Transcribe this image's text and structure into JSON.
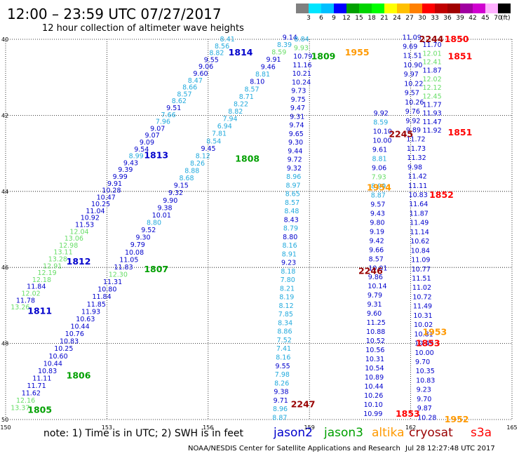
{
  "title": "12:00 – 23:59 UTC 07/27/2017",
  "subtitle": "12 hour collection of altimeter wave heights",
  "colorbar": {
    "unit": "(ft)",
    "segments": [
      {
        "label": "3",
        "color": "#808080"
      },
      {
        "label": "6",
        "color": "#00e5ff"
      },
      {
        "label": "9",
        "color": "#00bfff"
      },
      {
        "label": "12",
        "color": "#0000ff"
      },
      {
        "label": "15",
        "color": "#00a000"
      },
      {
        "label": "18",
        "color": "#00d400"
      },
      {
        "label": "21",
        "color": "#00ff00"
      },
      {
        "label": "24",
        "color": "#ffff00"
      },
      {
        "label": "27",
        "color": "#ffc000"
      },
      {
        "label": "30",
        "color": "#ff8000"
      },
      {
        "label": "33",
        "color": "#ff0000"
      },
      {
        "label": "36",
        "color": "#c00000"
      },
      {
        "label": "39",
        "color": "#a00000"
      },
      {
        "label": "42",
        "color": "#a000a0"
      },
      {
        "label": "45",
        "color": "#d000d0"
      },
      {
        "label": "70",
        "color": "#ffb0ff"
      },
      {
        "label": "",
        "color": "#000000"
      }
    ]
  },
  "map": {
    "lon_ticks": [
      "150",
      "153",
      "156",
      "159",
      "162",
      "165"
    ],
    "lat_ticks": [
      "40",
      "42",
      "44",
      "46",
      "48",
      "50"
    ],
    "lon_range": [
      150,
      165
    ],
    "lat_range": [
      40,
      50
    ]
  },
  "colors": {
    "jason2": "#0000cc",
    "jason3": "#00a000",
    "altika": "#ff9900",
    "cryosat": "#990000",
    "s3a": "#ff0000",
    "light_blue": "#22aadd",
    "light_green": "#66dd66"
  },
  "time_labels": [
    {
      "text": "1814",
      "sat": "jason2",
      "lon": 156.6,
      "lat": 40.35
    },
    {
      "text": "1813",
      "sat": "jason2",
      "lon": 154.1,
      "lat": 43.05
    },
    {
      "text": "1812",
      "sat": "jason2",
      "lon": 151.8,
      "lat": 45.85
    },
    {
      "text": "1811",
      "sat": "jason2",
      "lon": 150.65,
      "lat": 47.15
    },
    {
      "text": "1808",
      "sat": "jason3",
      "lon": 156.8,
      "lat": 43.15
    },
    {
      "text": "1807",
      "sat": "jason3",
      "lon": 154.1,
      "lat": 46.05
    },
    {
      "text": "1806",
      "sat": "jason3",
      "lon": 151.8,
      "lat": 48.85
    },
    {
      "text": "1805",
      "sat": "jason3",
      "lon": 150.65,
      "lat": 49.75
    },
    {
      "text": "1809",
      "sat": "jason3",
      "lon": 159.05,
      "lat": 40.45
    },
    {
      "text": "1955",
      "sat": "altika",
      "lon": 160.05,
      "lat": 40.35
    },
    {
      "text": "1954",
      "sat": "altika",
      "lon": 160.7,
      "lat": 43.9
    },
    {
      "text": "1953",
      "sat": "altika",
      "lon": 162.35,
      "lat": 47.7
    },
    {
      "text": "1952",
      "sat": "altika",
      "lon": 163.0,
      "lat": 50.0
    },
    {
      "text": "2244",
      "sat": "cryosat",
      "lon": 162.25,
      "lat": 40.0
    },
    {
      "text": "1850",
      "sat": "s3a",
      "lon": 163.0,
      "lat": 40.0
    },
    {
      "text": "1851",
      "sat": "s3a",
      "lon": 163.1,
      "lat": 40.45
    },
    {
      "text": "2245",
      "sat": "cryosat",
      "lon": 161.35,
      "lat": 42.5
    },
    {
      "text": "1851",
      "sat": "s3a",
      "lon": 163.1,
      "lat": 42.45
    },
    {
      "text": "1852",
      "sat": "s3a",
      "lon": 162.55,
      "lat": 44.1
    },
    {
      "text": "2246",
      "sat": "cryosat",
      "lon": 160.45,
      "lat": 46.1
    },
    {
      "text": "1853",
      "sat": "s3a",
      "lon": 162.15,
      "lat": 48.0
    },
    {
      "text": "2247",
      "sat": "cryosat",
      "lon": 158.45,
      "lat": 49.6
    },
    {
      "text": "1853",
      "sat": "s3a",
      "lon": 161.55,
      "lat": 49.85
    }
  ],
  "tracks": [
    {
      "name": "jason2-1814-1811",
      "values": [
        "8.41",
        "8.56",
        "8.82",
        "9.55",
        "9.06",
        "9.60",
        "8.47",
        "8.66",
        "8.57",
        "8.62",
        "9.51",
        "7.66",
        "7.96",
        "9.07",
        "9.07",
        "9.09",
        "9.54",
        "8.99",
        "9.43",
        "9.39",
        "9.99",
        "9.91",
        "10.28",
        "10.47",
        "10.25",
        "11.04",
        "10.92",
        "11.53",
        "12.04",
        "13.06",
        "12.98",
        "13.11",
        "13.28",
        "12.91",
        "12.19",
        "12.18",
        "11.84",
        "12.02",
        "11.78",
        "13.26"
      ],
      "colors": [
        "L",
        "L",
        "L",
        "B",
        "B",
        "B",
        "L",
        "L",
        "L",
        "L",
        "B",
        "L",
        "L",
        "B",
        "B",
        "B",
        "B",
        "L",
        "B",
        "B",
        "B",
        "B",
        "B",
        "B",
        "B",
        "B",
        "B",
        "B",
        "G",
        "G",
        "G",
        "G",
        "G",
        "G",
        "G",
        "G",
        "B",
        "G",
        "B",
        "G"
      ],
      "start": [
        156.35,
        40.0
      ],
      "end": [
        150.15,
        47.05
      ]
    },
    {
      "name": "jason3-1809-1805",
      "values": [
        "9.14",
        "8.39",
        "8.59",
        "9.91",
        "9.46",
        "8.81",
        "8.10",
        "8.57",
        "8.71",
        "8.22",
        "8.82",
        "7.94",
        "6.94",
        "7.81",
        "8.54",
        "9.45",
        "8.12",
        "8.26",
        "8.88",
        "8.68",
        "9.15",
        "9.32",
        "9.90",
        "9.38",
        "10.01",
        "8.80",
        "9.52",
        "9.30",
        "9.79",
        "10.08",
        "11.05",
        "11.83",
        "12.30",
        "11.31",
        "10.80",
        "11.84",
        "11.85",
        "11.93",
        "10.63",
        "10.44",
        "10.76",
        "10.83",
        "10.25",
        "10.60",
        "10.44",
        "10.83",
        "11.11",
        "11.71",
        "11.62",
        "12.16",
        "13.37"
      ],
      "colors": [
        "B",
        "L",
        "G",
        "B",
        "B",
        "L",
        "B",
        "L",
        "L",
        "L",
        "L",
        "L",
        "L",
        "L",
        "L",
        "B",
        "L",
        "L",
        "L",
        "L",
        "B",
        "B",
        "B",
        "B",
        "B",
        "L",
        "B",
        "B",
        "B",
        "B",
        "B",
        "B",
        "G",
        "B",
        "B",
        "B",
        "B",
        "B",
        "B",
        "B",
        "B",
        "B",
        "B",
        "B",
        "B",
        "B",
        "B",
        "B",
        "B",
        "G",
        "G"
      ],
      "start": [
        158.2,
        39.95
      ],
      "end": [
        150.15,
        49.7
      ]
    },
    {
      "name": "jason2-descending",
      "values": [
        "8.84",
        "9.93",
        "10.79",
        "11.16",
        "10.21",
        "10.24",
        "9.73",
        "9.75",
        "9.47",
        "9.31",
        "9.74",
        "9.65",
        "9.30",
        "9.44",
        "9.72",
        "9.32",
        "8.96",
        "8.97",
        "8.65",
        "8.57",
        "8.48",
        "8.43",
        "8.79",
        "8.80",
        "8.16",
        "8.91",
        "9.23",
        "8.18",
        "7.80",
        "8.21",
        "8.19",
        "8.12",
        "7.85",
        "8.34",
        "8.86",
        "7.52",
        "7.41",
        "8.16",
        "9.55",
        "7.98",
        "8.26",
        "9.38",
        "9.71",
        "8.96",
        "8.87"
      ],
      "colors": [
        "L",
        "G",
        "B",
        "B",
        "B",
        "B",
        "B",
        "B",
        "B",
        "B",
        "B",
        "B",
        "B",
        "B",
        "B",
        "B",
        "L",
        "L",
        "L",
        "L",
        "L",
        "B",
        "L",
        "B",
        "L",
        "L",
        "B",
        "L",
        "L",
        "L",
        "L",
        "L",
        "L",
        "L",
        "L",
        "L",
        "L",
        "L",
        "B",
        "L",
        "L",
        "B",
        "B",
        "L",
        "L"
      ],
      "start": [
        158.55,
        40.0
      ],
      "end": [
        157.9,
        49.95
      ]
    },
    {
      "name": "jason3-descending",
      "values": [
        "9.92",
        "8.59",
        "10.10",
        "10.00",
        "9.61",
        "8.81",
        "9.06",
        "7.93",
        "8.99",
        "8.87",
        "9.57",
        "9.43",
        "9.80",
        "9.19",
        "9.42",
        "9.66",
        "8.57",
        "10.01",
        "9.86",
        "10.14",
        "9.79",
        "9.31",
        "9.60",
        "11.25",
        "10.88",
        "10.52",
        "10.56",
        "10.31",
        "10.54",
        "10.89",
        "10.44",
        "10.26",
        "10.10",
        "10.99"
      ],
      "colors": [
        "B",
        "L",
        "B",
        "B",
        "B",
        "L",
        "B",
        "G",
        "L",
        "L",
        "B",
        "B",
        "B",
        "B",
        "B",
        "B",
        "B",
        "B",
        "B",
        "B",
        "B",
        "B",
        "B",
        "B",
        "B",
        "B",
        "B",
        "B",
        "B",
        "B",
        "B",
        "B",
        "B",
        "B"
      ],
      "start": [
        160.9,
        41.95
      ],
      "end": [
        160.6,
        49.85
      ]
    },
    {
      "name": "s3a-track",
      "values": [
        "11.09",
        "9.69",
        "11.51",
        "10.90",
        "9.97",
        "10.22",
        "9.57",
        "10.26",
        "9.76",
        "9.92",
        "9.89",
        "11.72",
        "11.73",
        "11.32",
        "9.98",
        "11.42",
        "11.11",
        "10.83",
        "11.64",
        "11.87",
        "11.49",
        "11.14",
        "10.62",
        "10.84",
        "11.09",
        "10.77",
        "11.51",
        "11.02",
        "10.72",
        "11.49",
        "10.31",
        "10.02",
        "10.81",
        "10.49",
        "10.00",
        "9.70",
        "10.35",
        "10.83",
        "9.23",
        "9.70",
        "9.87",
        "10.28"
      ],
      "colors": [
        "B",
        "B",
        "B",
        "B",
        "B",
        "B",
        "B",
        "B",
        "B",
        "B",
        "B",
        "B",
        "B",
        "B",
        "B",
        "B",
        "B",
        "B",
        "B",
        "B",
        "B",
        "B",
        "B",
        "B",
        "B",
        "B",
        "B",
        "B",
        "B",
        "B",
        "B",
        "B",
        "B",
        "B",
        "B",
        "B",
        "B",
        "B",
        "B",
        "B",
        "B",
        "B"
      ],
      "start": [
        161.75,
        39.95
      ],
      "end": [
        162.2,
        49.95
      ]
    },
    {
      "name": "altika-track",
      "values": [
        "11.70",
        "12.01",
        "12.41",
        "11.87",
        "12.02",
        "12.12",
        "12.45",
        "11.77",
        "11.93",
        "11.47",
        "11.92"
      ],
      "colors": [
        "B",
        "G",
        "G",
        "B",
        "G",
        "G",
        "G",
        "B",
        "B",
        "B",
        "B"
      ],
      "start": [
        162.35,
        40.15
      ],
      "end": [
        162.35,
        42.4
      ]
    }
  ],
  "note": "note: 1) Time is in UTC; 2) SWH is in feet",
  "legend": [
    {
      "label": "jason2",
      "sat": "jason2",
      "x": 390
    },
    {
      "label": "jason3",
      "sat": "jason3",
      "x": 462
    },
    {
      "label": "altika",
      "sat": "altika",
      "x": 530
    },
    {
      "label": "cryosat",
      "sat": "cryosat",
      "x": 583
    },
    {
      "label": "s3a",
      "sat": "s3a",
      "x": 671
    }
  ],
  "credit": "NOAA/NESDIS Center for Satellite Applications and Research",
  "timestamp": "Jul 28 12:27:48 UTC 2017"
}
